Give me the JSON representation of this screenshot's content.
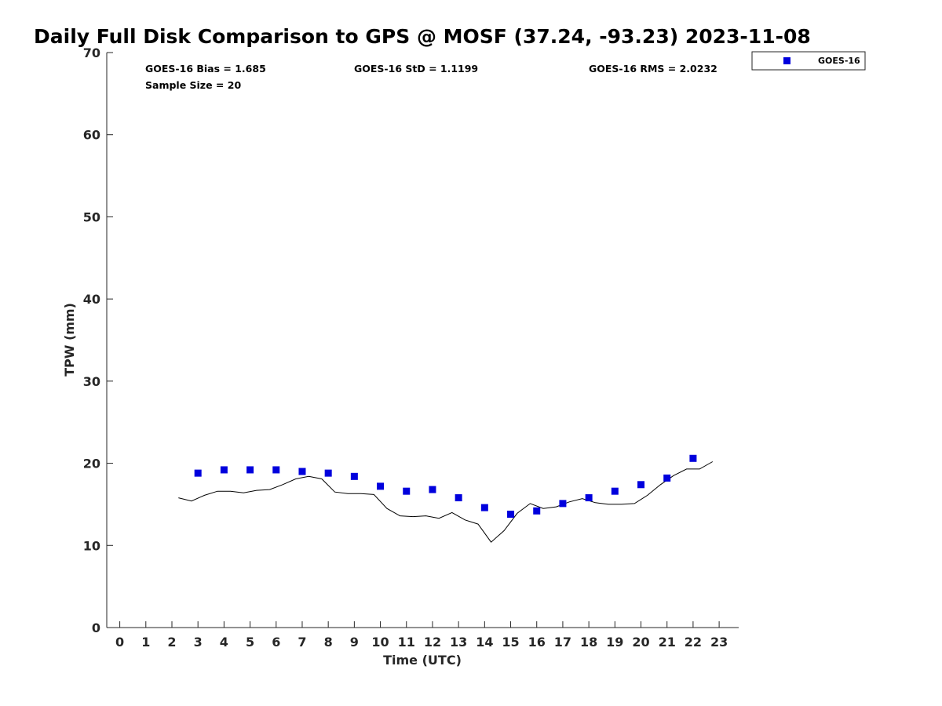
{
  "chart_data": {
    "type": "scatter",
    "title": "Daily Full Disk Comparison to GPS @ MOSF (37.24, -93.23) 2023-11-08",
    "xlabel": "Time (UTC)",
    "ylabel": "TPW (mm)",
    "xlim": [
      -0.5,
      23.75
    ],
    "ylim": [
      0,
      70
    ],
    "xticks": [
      0,
      1,
      2,
      3,
      4,
      5,
      6,
      7,
      8,
      9,
      10,
      11,
      12,
      13,
      14,
      15,
      16,
      17,
      18,
      19,
      20,
      21,
      22,
      23
    ],
    "yticks": [
      0,
      10,
      20,
      30,
      40,
      50,
      60,
      70
    ],
    "grid": false,
    "legend": {
      "position": "top-right-outside",
      "entries": [
        "GOES-16"
      ]
    },
    "stats": {
      "bias": "GOES-16 Bias = 1.685",
      "std": "GOES-16 StD = 1.1199",
      "rms": "GOES-16 RMS = 2.0232",
      "sample": "Sample Size = 20"
    },
    "series": [
      {
        "name": "GOES-16",
        "kind": "scatter",
        "color": "#0000dd",
        "x": [
          3,
          4,
          5,
          6,
          7,
          8,
          9,
          10,
          11,
          12,
          13,
          14,
          15,
          16,
          17,
          18,
          19,
          20,
          21,
          22
        ],
        "y": [
          18.8,
          19.2,
          19.2,
          19.2,
          19.0,
          18.8,
          18.4,
          17.2,
          16.6,
          16.8,
          15.8,
          14.6,
          13.8,
          14.2,
          15.1,
          15.8,
          16.6,
          17.4,
          18.2,
          20.6
        ]
      },
      {
        "name": "GPS",
        "kind": "line",
        "color": "#000000",
        "x": [
          2.25,
          2.75,
          3.25,
          3.75,
          4.25,
          4.75,
          5.25,
          5.75,
          6.25,
          6.75,
          7.25,
          7.75,
          8.25,
          8.75,
          9.25,
          9.75,
          10.25,
          10.75,
          11.25,
          11.75,
          12.25,
          12.75,
          13.25,
          13.75,
          14.25,
          14.75,
          15.25,
          15.75,
          16.25,
          16.75,
          17.25,
          17.75,
          18.25,
          18.75,
          19.25,
          19.75,
          20.25,
          20.75,
          21.25,
          21.75,
          22.25,
          22.75
        ],
        "y": [
          15.8,
          15.4,
          16.1,
          16.6,
          16.6,
          16.4,
          16.7,
          16.8,
          17.4,
          18.1,
          18.4,
          18.1,
          16.5,
          16.3,
          16.3,
          16.2,
          14.5,
          13.6,
          13.5,
          13.6,
          13.3,
          14.0,
          13.1,
          12.6,
          10.4,
          11.8,
          13.9,
          15.1,
          14.5,
          14.7,
          15.3,
          15.7,
          15.2,
          15.0,
          15.0,
          15.1,
          16.1,
          17.4,
          18.5,
          19.3,
          19.3,
          20.2
        ]
      }
    ]
  }
}
